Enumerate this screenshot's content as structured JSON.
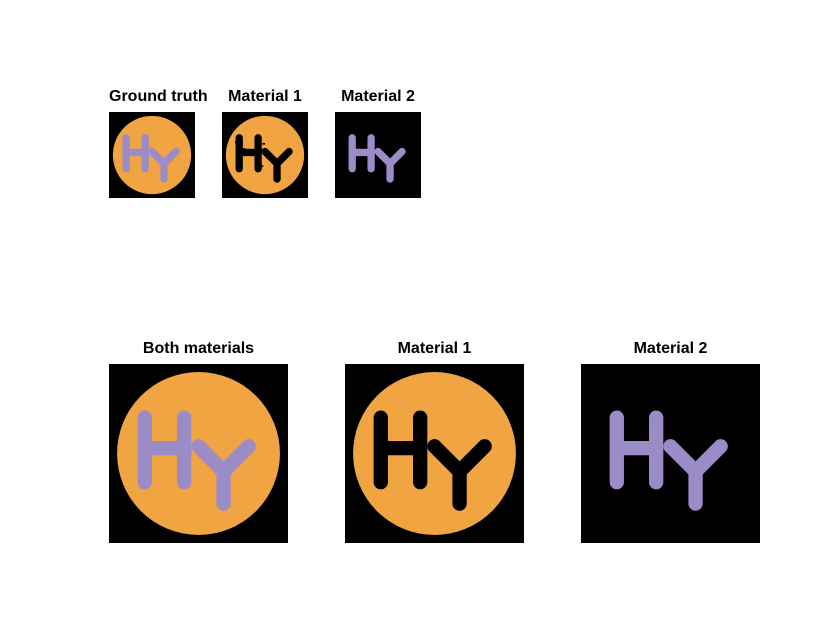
{
  "colors": {
    "background": "#000000",
    "material_1": "#f0a442",
    "material_2": "#9b8cc8",
    "page": "#ffffff"
  },
  "letters": "Hy",
  "top_row": [
    {
      "title": "Ground truth",
      "layers": [
        "material_1",
        "material_2"
      ],
      "artifacts": true
    },
    {
      "title": "Material 1",
      "layers": [
        "material_1"
      ],
      "artifacts": true
    },
    {
      "title": "Material 2",
      "layers": [
        "material_2"
      ],
      "artifacts": true
    }
  ],
  "bottom_row": [
    {
      "title": "Both materials",
      "layers": [
        "material_1",
        "material_2"
      ],
      "artifacts": false
    },
    {
      "title": "Material 1",
      "layers": [
        "material_1"
      ],
      "artifacts": false
    },
    {
      "title": "Material 2",
      "layers": [
        "material_2"
      ],
      "artifacts": false
    }
  ]
}
